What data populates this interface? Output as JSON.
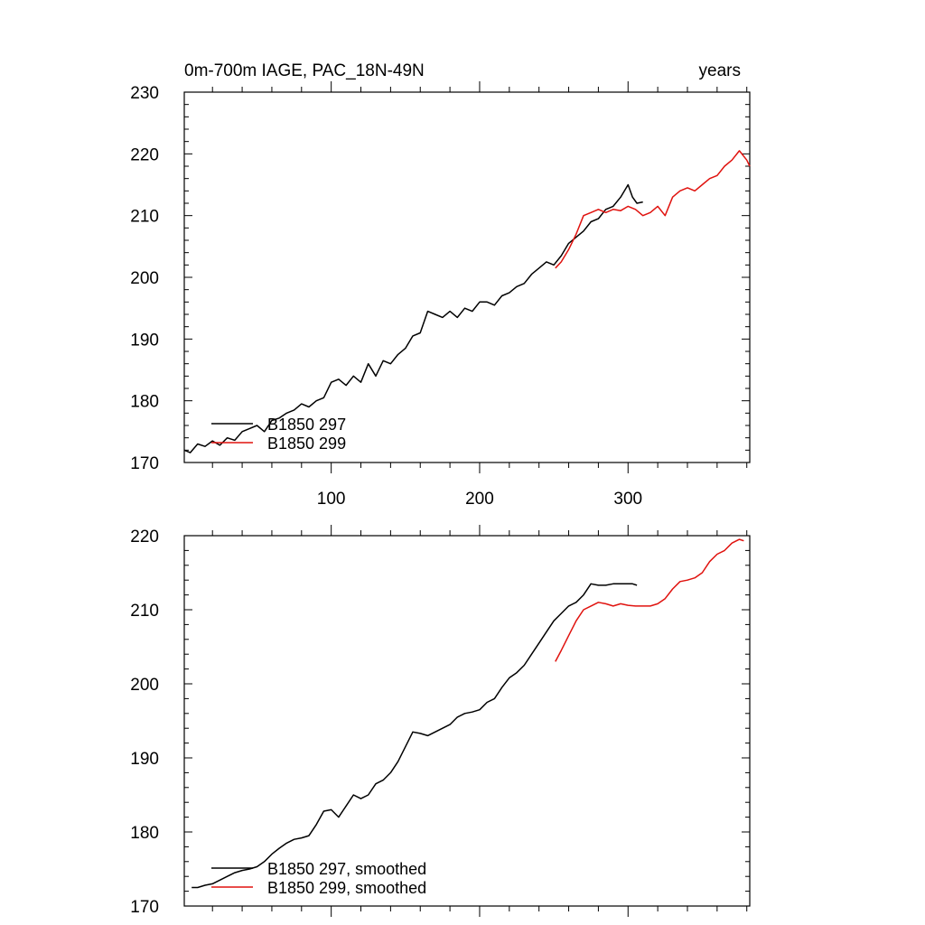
{
  "colors": {
    "series_297": "#000000",
    "series_299": "#e0120e"
  },
  "chart_data": [
    {
      "type": "line",
      "title": "0m-700m IAGE, PAC_18N-49N",
      "title_right": "years",
      "xlabel": "",
      "ylabel": "",
      "xlim": [
        1,
        382
      ],
      "ylim": [
        170,
        230
      ],
      "yticks": [
        170,
        180,
        190,
        200,
        210,
        220,
        230
      ],
      "xticks": [
        100,
        200,
        300
      ],
      "show_x_tick_labels": true,
      "legend_position": "bottom-left",
      "series": [
        {
          "name": "B1850 297",
          "color": "#000000",
          "x": [
            1,
            5,
            10,
            15,
            20,
            25,
            30,
            35,
            40,
            45,
            50,
            55,
            60,
            65,
            70,
            75,
            80,
            85,
            90,
            95,
            100,
            105,
            110,
            115,
            120,
            125,
            130,
            135,
            140,
            145,
            150,
            155,
            160,
            165,
            170,
            175,
            180,
            185,
            190,
            195,
            200,
            205,
            210,
            215,
            220,
            225,
            230,
            235,
            240,
            245,
            250,
            255,
            260,
            265,
            270,
            275,
            280,
            285,
            290,
            295,
            300,
            303,
            306,
            310
          ],
          "y": [
            172.0,
            171.6,
            173.0,
            172.6,
            173.5,
            172.8,
            174.0,
            173.6,
            175.0,
            175.5,
            176.0,
            175.0,
            176.8,
            177.2,
            178.0,
            178.5,
            179.5,
            179.0,
            180.0,
            180.5,
            183.0,
            183.5,
            182.5,
            184.0,
            183.0,
            186.0,
            184.0,
            186.5,
            186.0,
            187.5,
            188.5,
            190.5,
            191.0,
            194.5,
            194.0,
            193.5,
            194.5,
            193.5,
            195.0,
            194.5,
            196.0,
            196.0,
            195.5,
            197.0,
            197.5,
            198.5,
            199.0,
            200.5,
            201.5,
            202.5,
            202.0,
            203.5,
            205.5,
            206.5,
            207.5,
            209.0,
            209.5,
            211.0,
            211.5,
            213.0,
            215.0,
            213.0,
            212.0,
            212.2
          ]
        },
        {
          "name": "B1850 299",
          "color": "#e0120e",
          "x": [
            251,
            255,
            260,
            265,
            270,
            275,
            280,
            285,
            290,
            295,
            300,
            305,
            310,
            315,
            320,
            325,
            330,
            335,
            340,
            345,
            350,
            355,
            360,
            365,
            370,
            375,
            380,
            382
          ],
          "y": [
            201.5,
            202.5,
            204.5,
            207.0,
            210.0,
            210.5,
            211.0,
            210.5,
            211.0,
            210.8,
            211.5,
            211.0,
            210.0,
            210.5,
            211.5,
            210.0,
            213.0,
            214.0,
            214.5,
            214.0,
            215.0,
            216.0,
            216.5,
            218.0,
            219.0,
            220.5,
            219.0,
            218.0
          ]
        }
      ]
    },
    {
      "type": "line",
      "title": "",
      "xlabel": "",
      "ylabel": "",
      "xlim": [
        1,
        382
      ],
      "ylim": [
        170,
        220
      ],
      "yticks": [
        170,
        180,
        190,
        200,
        210,
        220
      ],
      "xticks": [
        100,
        200,
        300
      ],
      "show_x_tick_labels": false,
      "legend_position": "bottom-left",
      "series": [
        {
          "name": "B1850 297, smoothed",
          "color": "#000000",
          "x": [
            6,
            10,
            15,
            20,
            25,
            30,
            35,
            40,
            45,
            50,
            55,
            60,
            65,
            70,
            75,
            80,
            85,
            90,
            95,
            100,
            105,
            110,
            115,
            120,
            125,
            130,
            135,
            140,
            145,
            150,
            155,
            160,
            165,
            170,
            175,
            180,
            185,
            190,
            195,
            200,
            205,
            210,
            215,
            220,
            225,
            230,
            235,
            240,
            245,
            250,
            255,
            260,
            265,
            270,
            275,
            280,
            285,
            290,
            295,
            300,
            303,
            306
          ],
          "y": [
            172.5,
            172.5,
            172.8,
            173.0,
            173.5,
            174.0,
            174.5,
            174.8,
            175.0,
            175.3,
            176.0,
            177.0,
            177.8,
            178.5,
            179.0,
            179.2,
            179.5,
            181.0,
            182.8,
            183.0,
            182.0,
            183.5,
            185.0,
            184.5,
            185.0,
            186.5,
            187.0,
            188.0,
            189.5,
            191.5,
            193.5,
            193.3,
            193.0,
            193.5,
            194.0,
            194.5,
            195.5,
            196.0,
            196.2,
            196.5,
            197.5,
            198.0,
            199.5,
            200.8,
            201.5,
            202.5,
            204.0,
            205.5,
            207.0,
            208.5,
            209.5,
            210.5,
            211.0,
            212.0,
            213.5,
            213.3,
            213.3,
            213.5,
            213.5,
            213.5,
            213.5,
            213.3
          ]
        },
        {
          "name": "B1850 299, smoothed",
          "color": "#e0120e",
          "x": [
            251,
            255,
            260,
            265,
            270,
            275,
            280,
            285,
            290,
            295,
            300,
            305,
            310,
            315,
            320,
            325,
            330,
            335,
            340,
            345,
            350,
            355,
            360,
            365,
            370,
            375,
            378
          ],
          "y": [
            203.0,
            204.5,
            206.5,
            208.5,
            210.0,
            210.5,
            211.0,
            210.8,
            210.5,
            210.8,
            210.6,
            210.5,
            210.5,
            210.5,
            210.8,
            211.5,
            212.8,
            213.8,
            214.0,
            214.3,
            215.0,
            216.5,
            217.5,
            218.0,
            219.0,
            219.5,
            219.3
          ]
        }
      ]
    }
  ]
}
